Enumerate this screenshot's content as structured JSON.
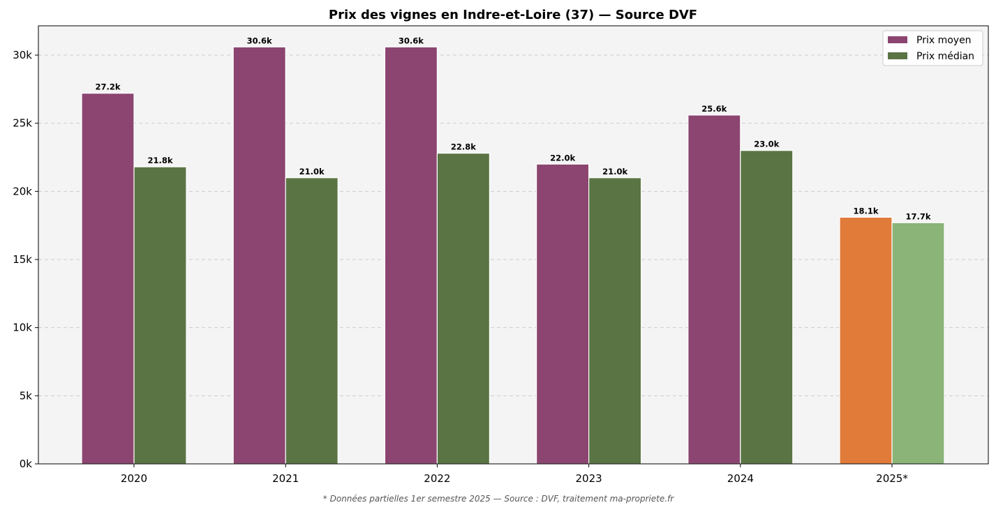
{
  "chart_data": {
    "type": "bar",
    "title": "Prix des vignes en Indre-et-Loire (37) — Source DVF",
    "xlabel": "",
    "ylabel": "",
    "categories": [
      "2020",
      "2021",
      "2022",
      "2023",
      "2024",
      "2025*"
    ],
    "series": [
      {
        "name": "Prix moyen",
        "values": [
          27200,
          30600,
          30600,
          22000,
          25600,
          18100
        ],
        "labels": [
          "27.2k",
          "30.6k",
          "30.6k",
          "22.0k",
          "25.6k",
          "18.1k"
        ],
        "color": "#8B4570",
        "highlight_color": "#E07B39"
      },
      {
        "name": "Prix médian",
        "values": [
          21800,
          21000,
          22800,
          21000,
          23000,
          17700
        ],
        "labels": [
          "21.8k",
          "21.0k",
          "22.8k",
          "21.0k",
          "23.0k",
          "17.7k"
        ],
        "color": "#5A7444",
        "highlight_color": "#8AB478"
      }
    ],
    "highlight_category": "2025*",
    "ylim": [
      0,
      32150
    ],
    "yticks": [
      0,
      5000,
      10000,
      15000,
      20000,
      25000,
      30000
    ],
    "ytick_labels": [
      "0k",
      "5k",
      "10k",
      "15k",
      "20k",
      "25k",
      "30k"
    ],
    "grid": "horizontal dashed",
    "legend_position": "top-right",
    "background_color": "#F4F4F4",
    "footnote": "* Données partielles 1er semestre 2025 — Source : DVF, traitement ma-propriete.fr"
  }
}
